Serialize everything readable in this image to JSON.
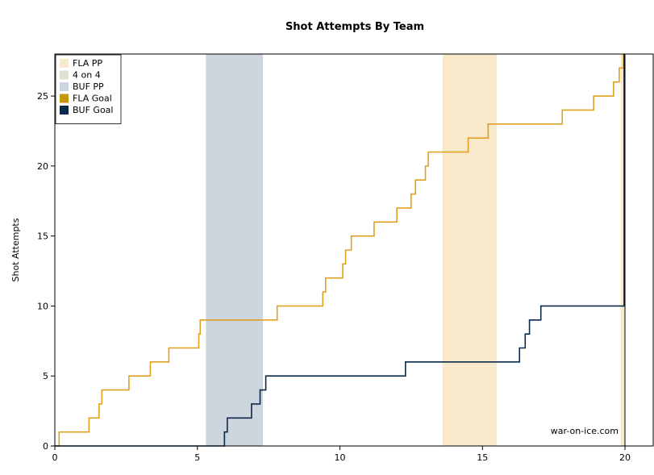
{
  "chart_data": {
    "type": "line",
    "title": "Shot Attempts By Team",
    "xlabel": "",
    "ylabel": "Shot Attempts",
    "xlim": [
      0,
      20
    ],
    "ylim": [
      0,
      28
    ],
    "x_ticks": [
      0,
      5,
      10,
      15,
      20
    ],
    "y_ticks": [
      0,
      5,
      10,
      15,
      20,
      25
    ],
    "grid": false,
    "legend_position": "top-left",
    "watermark": "war-on-ice.com",
    "legend": [
      {
        "label": "FLA PP",
        "color": "#f7e9c9"
      },
      {
        "label": "4 on 4",
        "color": "#e2e0d6"
      },
      {
        "label": "BUF PP",
        "color": "#cdd5df"
      },
      {
        "label": "FLA Goal",
        "color": "#c8960c"
      },
      {
        "label": "BUF Goal",
        "color": "#0b2a4a"
      }
    ],
    "bands": [
      {
        "name": "BUF PP",
        "x0": 5.3,
        "x1": 7.3,
        "color": "#cdd5df"
      },
      {
        "name": "FLA PP",
        "x0": 13.6,
        "x1": 15.5,
        "color": "#f7e9c9"
      },
      {
        "name": "FLA PP",
        "x0": 19.85,
        "x1": 20.0,
        "color": "#f7e9c9"
      }
    ],
    "series": [
      {
        "name": "FLA",
        "color": "#e0a020",
        "steps": [
          [
            0.0,
            0
          ],
          [
            0.15,
            1
          ],
          [
            1.2,
            2
          ],
          [
            1.55,
            3
          ],
          [
            1.65,
            4
          ],
          [
            2.6,
            5
          ],
          [
            3.35,
            6
          ],
          [
            4.0,
            7
          ],
          [
            5.05,
            8
          ],
          [
            5.1,
            9
          ],
          [
            7.8,
            10
          ],
          [
            9.4,
            11
          ],
          [
            9.5,
            12
          ],
          [
            10.1,
            13
          ],
          [
            10.2,
            14
          ],
          [
            10.4,
            15
          ],
          [
            11.2,
            16
          ],
          [
            12.0,
            17
          ],
          [
            12.5,
            18
          ],
          [
            12.65,
            19
          ],
          [
            13.0,
            20
          ],
          [
            13.1,
            21
          ],
          [
            14.5,
            22
          ],
          [
            15.2,
            23
          ],
          [
            17.8,
            24
          ],
          [
            18.9,
            25
          ],
          [
            19.6,
            26
          ],
          [
            19.8,
            27
          ],
          [
            19.95,
            28
          ],
          [
            20.0,
            28
          ]
        ]
      },
      {
        "name": "BUF",
        "color": "#0b2a4a",
        "steps": [
          [
            0.0,
            0
          ],
          [
            5.95,
            1
          ],
          [
            6.05,
            2
          ],
          [
            6.9,
            3
          ],
          [
            7.2,
            4
          ],
          [
            7.4,
            5
          ],
          [
            12.3,
            6
          ],
          [
            16.3,
            7
          ],
          [
            16.5,
            8
          ],
          [
            16.65,
            9
          ],
          [
            17.05,
            10
          ],
          [
            19.95,
            10
          ],
          [
            19.97,
            28
          ]
        ]
      }
    ]
  }
}
